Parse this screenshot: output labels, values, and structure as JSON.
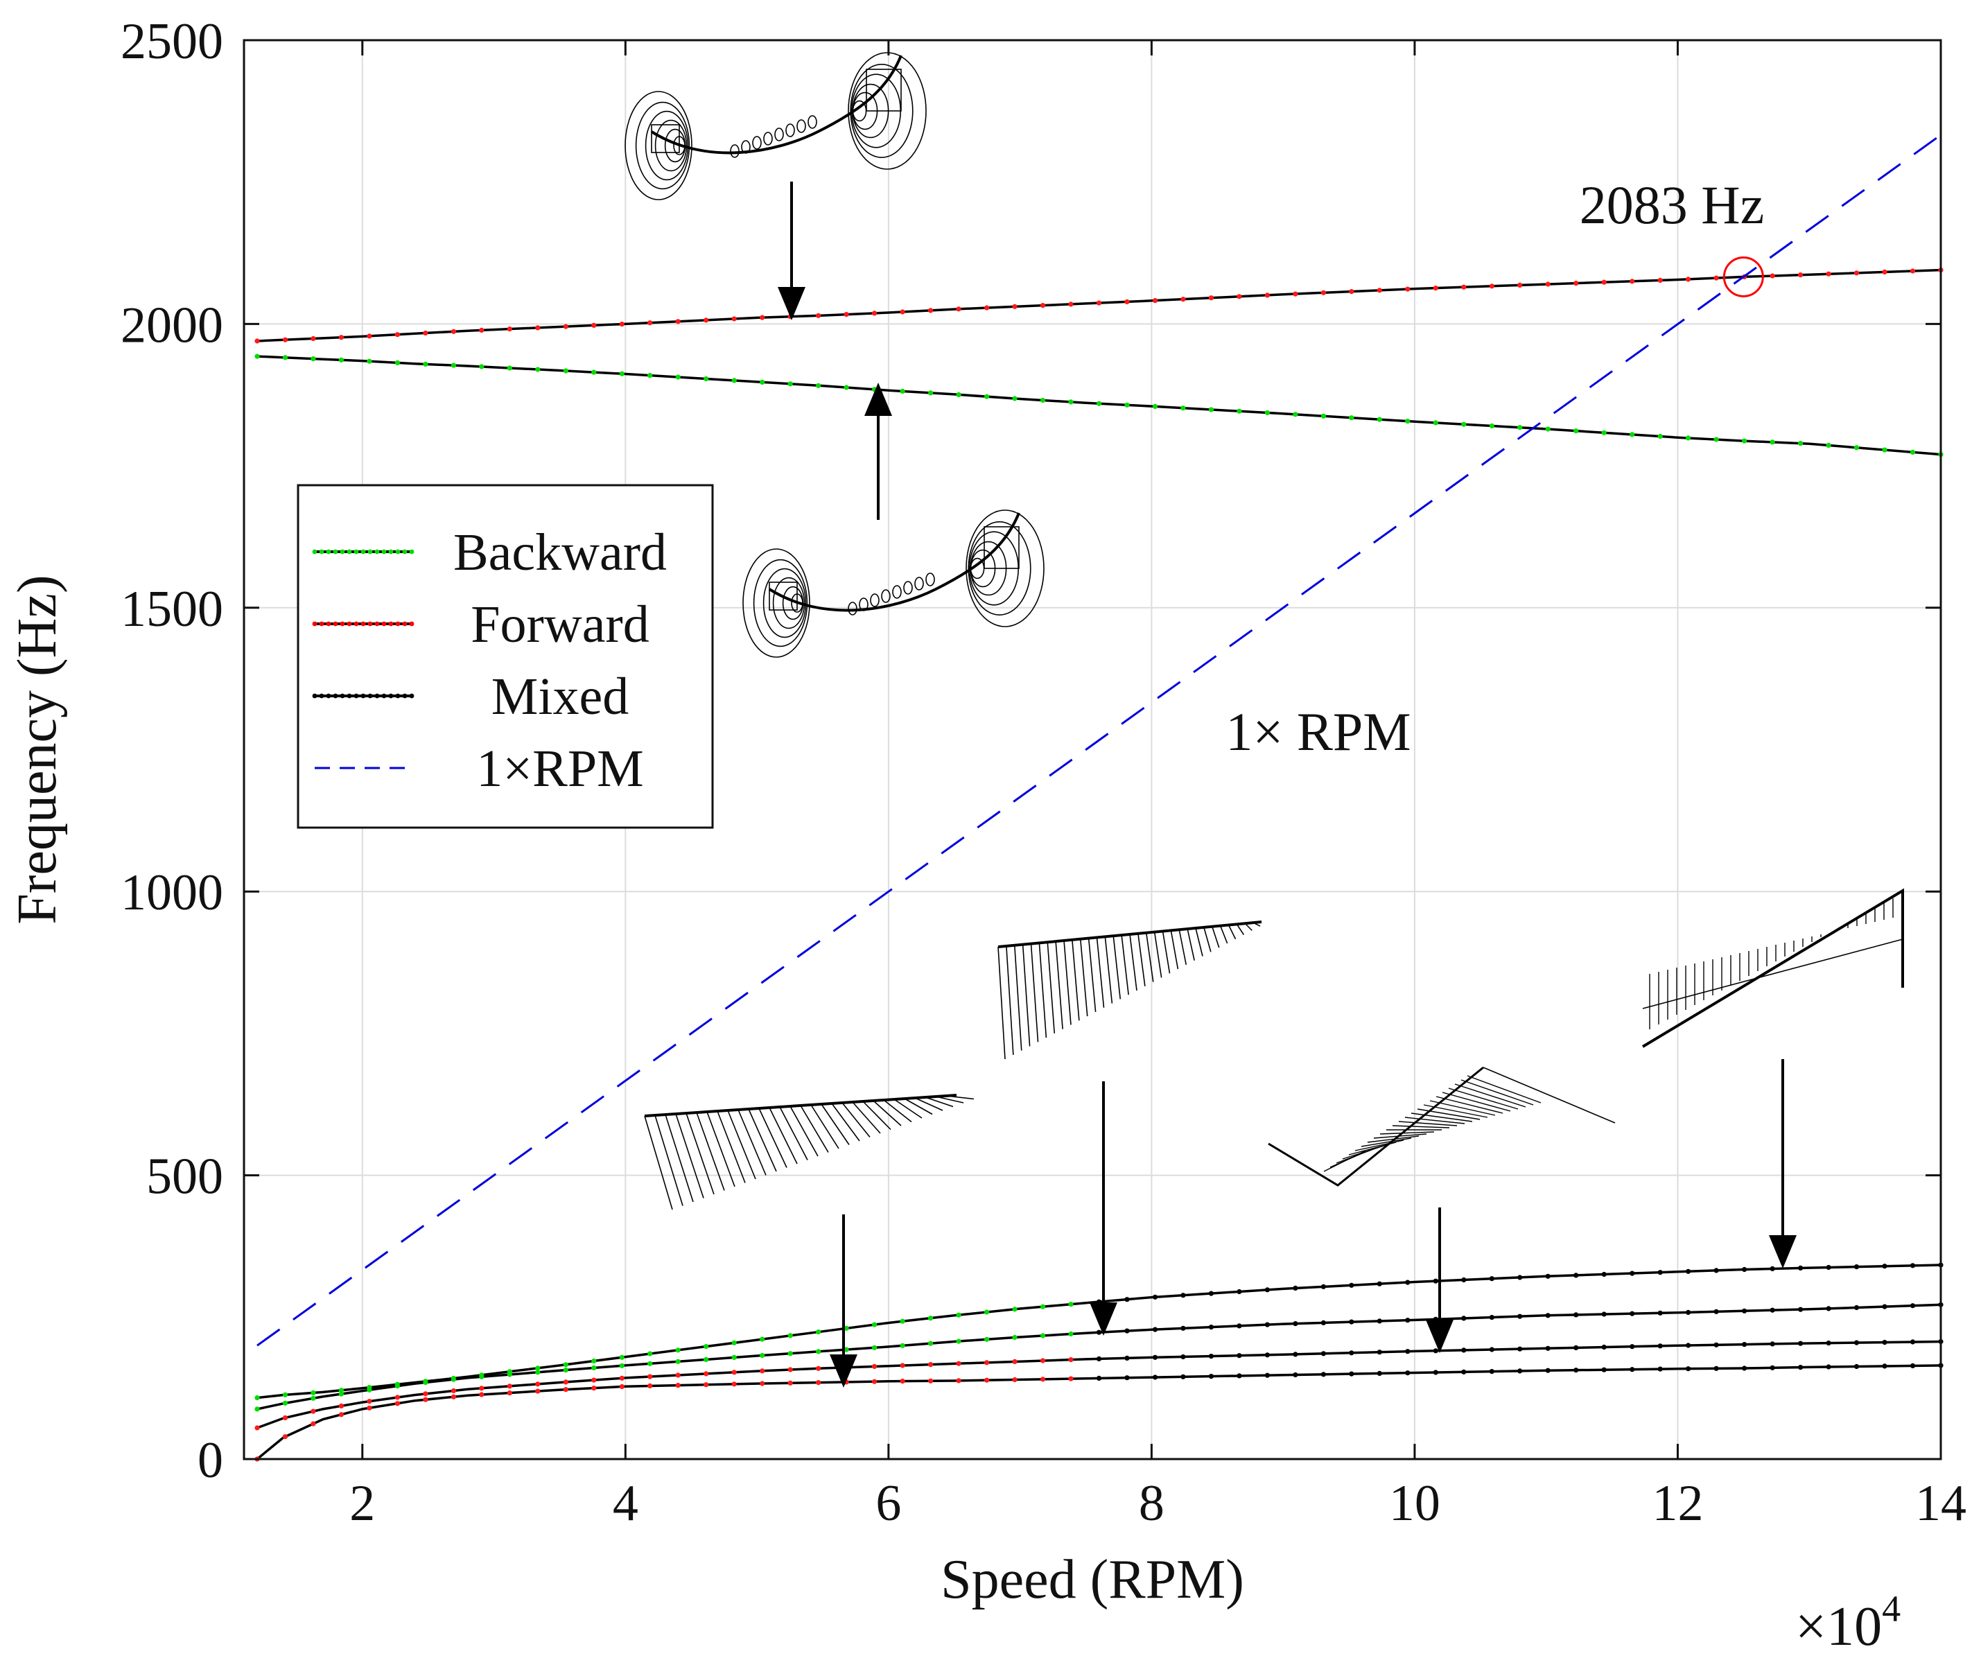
{
  "chart_data": {
    "type": "line",
    "xlabel": "Speed (RPM)",
    "ylabel": "Frequency (Hz)",
    "x_multiplier_label": "×10",
    "x_multiplier_exponent": "4",
    "xlim": [
      11000,
      140000
    ],
    "ylim": [
      0,
      2500
    ],
    "x_ticks": [
      20000,
      40000,
      60000,
      80000,
      100000,
      120000,
      140000
    ],
    "x_tick_labels": [
      "2",
      "4",
      "6",
      "8",
      "10",
      "12",
      "14"
    ],
    "y_ticks": [
      0,
      500,
      1000,
      1500,
      2000,
      2500
    ],
    "y_tick_labels": [
      "0",
      "500",
      "1000",
      "1500",
      "2000",
      "2500"
    ],
    "grid": true,
    "legend_position": "center-left",
    "legend": [
      {
        "label": "Backward",
        "color": "#00dd00",
        "style": "dotted"
      },
      {
        "label": "Forward",
        "color": "#ff0000",
        "style": "dotted"
      },
      {
        "label": "Mixed",
        "color": "#000000",
        "style": "dotted"
      },
      {
        "label": "1×RPM",
        "color": "#0000dd",
        "style": "dashed"
      }
    ],
    "x": [
      12000,
      14000,
      17000,
      20000,
      24000,
      28000,
      35000,
      40000,
      50000,
      55000,
      60000,
      65000,
      70000,
      75000,
      80000,
      90000,
      100000,
      110000,
      120000,
      125000,
      130000,
      140000
    ],
    "series": [
      {
        "values": [
          1970,
          1972,
          1975,
          1978,
          1983,
          1988,
          1995,
          2000,
          2011,
          2015,
          2020,
          2026,
          2031,
          2036,
          2041,
          2052,
          2062,
          2070,
          2078,
          2083,
          2087,
          2095
        ],
        "segment_colors": [
          "forward"
        ]
      },
      {
        "values": [
          1943,
          1941,
          1938,
          1935,
          1930,
          1926,
          1918,
          1912,
          1898,
          1891,
          1883,
          1876,
          1868,
          1861,
          1855,
          1842,
          1828,
          1815,
          1800,
          1794,
          1789,
          1770
        ],
        "segment_colors": [
          "backward"
        ]
      },
      {
        "values": [
          108,
          113,
          118,
          125,
          135,
          145,
          165,
          180,
          210,
          225,
          240,
          253,
          265,
          275,
          285,
          300,
          312,
          322,
          330,
          334,
          337,
          342
        ],
        "segment_colors": [
          "backward",
          "mixed"
        ]
      },
      {
        "values": [
          88,
          98,
          110,
          120,
          133,
          143,
          156,
          165,
          182,
          190,
          198,
          207,
          215,
          222,
          228,
          238,
          245,
          253,
          258,
          261,
          264,
          272
        ],
        "segment_colors": [
          "backward",
          "mixed"
        ]
      },
      {
        "values": [
          55,
          72,
          88,
          100,
          113,
          123,
          135,
          143,
          155,
          160,
          164,
          168,
          172,
          176,
          179,
          184,
          190,
          195,
          200,
          202,
          204,
          207
        ],
        "segment_colors": [
          "forward",
          "mixed"
        ]
      },
      {
        "values": [
          0,
          38,
          70,
          88,
          103,
          112,
          122,
          128,
          133,
          135,
          137,
          138,
          140,
          142,
          144,
          148,
          152,
          156,
          159,
          160,
          162,
          165
        ],
        "segment_colors": [
          "forward",
          "mixed"
        ]
      },
      {
        "x": [
          12000,
          140000
        ],
        "values": [
          200,
          2333
        ],
        "segment_colors": [
          "rpm"
        ]
      }
    ],
    "annotations": [
      {
        "text": "2083 Hz",
        "x": 125000,
        "y": 2083,
        "marker": "circle",
        "marker_color": "#ff0000"
      },
      {
        "text": "1× RPM"
      }
    ],
    "mode_shape_insets": 6
  }
}
